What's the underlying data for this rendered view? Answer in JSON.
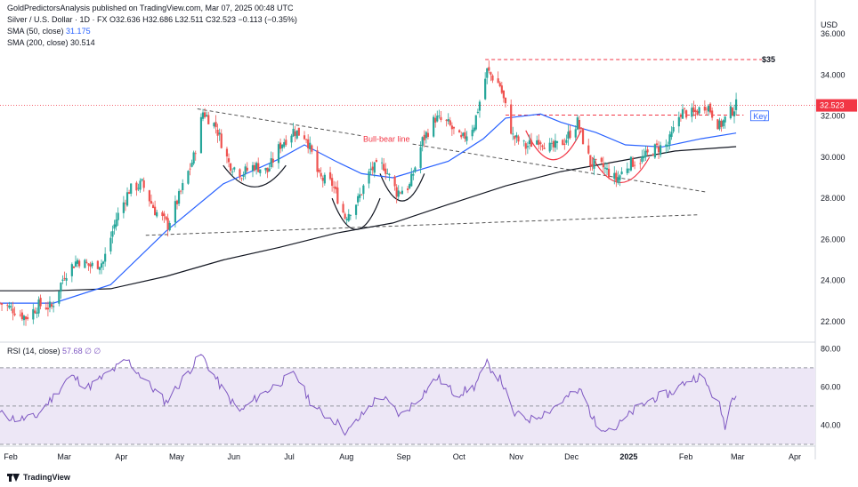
{
  "header": {
    "publisher": "GoldPredictorsAnalysis published on TradingView.com, Mar 07, 2025 00:48 UTC",
    "symbol_line": "Silver / U.S. Dollar · 1D · FX",
    "ohlc": "O32.636 H32.686 L32.511 C32.523 −0.113 (−0.35%)",
    "sma50_label": "SMA (50, close)",
    "sma50_value": "31.175",
    "sma200_label": "SMA (200, close)",
    "sma200_value": "30.514",
    "rsi_label": "RSI (14, close)",
    "rsi_value": "57.68",
    "rsi_extra": "∅ ∅"
  },
  "footer": {
    "brand": "TradingView"
  },
  "colors": {
    "up": "#26a69a",
    "down": "#ef5350",
    "sma50": "#2962ff",
    "sma200": "#131722",
    "rsi": "#7e57c2",
    "rsi_band": "#ede7f6",
    "red_line": "#f23645"
  },
  "annotations": {
    "target_label": "$35",
    "bull_bear_label": "Bull-bear line",
    "key_label": "Key",
    "price_badge": "32.523"
  },
  "chart_data": {
    "type": "candlestick",
    "currency_label": "USD",
    "x_start": "2024-02-01",
    "x_end": "2025-04-15",
    "month_ticks": [
      {
        "label": "Feb",
        "date": "2024-02-01"
      },
      {
        "label": "Mar",
        "date": "2024-03-01"
      },
      {
        "label": "Apr",
        "date": "2024-04-01"
      },
      {
        "label": "May",
        "date": "2024-05-01"
      },
      {
        "label": "Jun",
        "date": "2024-06-01"
      },
      {
        "label": "Jul",
        "date": "2024-07-01"
      },
      {
        "label": "Aug",
        "date": "2024-08-01"
      },
      {
        "label": "Sep",
        "date": "2024-09-01"
      },
      {
        "label": "Oct",
        "date": "2024-10-01"
      },
      {
        "label": "Nov",
        "date": "2024-11-01"
      },
      {
        "label": "Dec",
        "date": "2024-12-01"
      },
      {
        "label": "2025",
        "date": "2025-01-01"
      },
      {
        "label": "Feb",
        "date": "2025-02-01"
      },
      {
        "label": "Mar",
        "date": "2025-03-01"
      },
      {
        "label": "Apr",
        "date": "2025-04-01"
      }
    ],
    "price_axis": {
      "ylim": [
        21.0,
        37.0
      ],
      "ticks": [
        22,
        24,
        26,
        28,
        30,
        32,
        34,
        36
      ],
      "tick_labels": [
        "22.000",
        "24.000",
        "26.000",
        "28.000",
        "30.000",
        "32.000",
        "34.000",
        "36.000"
      ]
    },
    "rsi_axis": {
      "ylim": [
        30,
        82
      ],
      "ticks": [
        40,
        60,
        80
      ],
      "tick_labels": [
        "40.00",
        "60.00",
        "80.00"
      ],
      "upper_band": 70,
      "lower_band": 30,
      "mid": 50
    },
    "close_path": [
      [
        "2024-02-01",
        22.9
      ],
      [
        "2024-02-08",
        22.6
      ],
      [
        "2024-02-15",
        22.2
      ],
      [
        "2024-02-22",
        22.8
      ],
      [
        "2024-02-29",
        22.7
      ],
      [
        "2024-03-07",
        24.3
      ],
      [
        "2024-03-14",
        25.0
      ],
      [
        "2024-03-21",
        24.7
      ],
      [
        "2024-03-28",
        24.9
      ],
      [
        "2024-04-04",
        27.0
      ],
      [
        "2024-04-11",
        28.4
      ],
      [
        "2024-04-18",
        28.7
      ],
      [
        "2024-04-25",
        27.4
      ],
      [
        "2024-05-02",
        26.7
      ],
      [
        "2024-05-09",
        28.3
      ],
      [
        "2024-05-16",
        30.0
      ],
      [
        "2024-05-21",
        32.2
      ],
      [
        "2024-05-28",
        31.5
      ],
      [
        "2024-06-04",
        29.7
      ],
      [
        "2024-06-11",
        29.2
      ],
      [
        "2024-06-18",
        29.6
      ],
      [
        "2024-06-25",
        29.3
      ],
      [
        "2024-07-02",
        30.6
      ],
      [
        "2024-07-09",
        31.3
      ],
      [
        "2024-07-16",
        31.0
      ],
      [
        "2024-07-23",
        29.0
      ],
      [
        "2024-07-30",
        28.7
      ],
      [
        "2024-08-06",
        27.1
      ],
      [
        "2024-08-13",
        27.9
      ],
      [
        "2024-08-20",
        29.4
      ],
      [
        "2024-08-27",
        29.6
      ],
      [
        "2024-09-03",
        28.3
      ],
      [
        "2024-09-10",
        28.6
      ],
      [
        "2024-09-17",
        30.8
      ],
      [
        "2024-09-24",
        31.9
      ],
      [
        "2024-10-01",
        31.6
      ],
      [
        "2024-10-08",
        30.8
      ],
      [
        "2024-10-15",
        31.6
      ],
      [
        "2024-10-22",
        34.2
      ],
      [
        "2024-10-29",
        33.5
      ],
      [
        "2024-11-05",
        31.0
      ],
      [
        "2024-11-12",
        30.5
      ],
      [
        "2024-11-19",
        30.9
      ],
      [
        "2024-11-26",
        30.4
      ],
      [
        "2024-12-03",
        30.8
      ],
      [
        "2024-12-10",
        31.7
      ],
      [
        "2024-12-17",
        29.7
      ],
      [
        "2024-12-24",
        29.5
      ],
      [
        "2024-12-31",
        28.9
      ],
      [
        "2025-01-07",
        29.7
      ],
      [
        "2025-01-14",
        29.9
      ],
      [
        "2025-01-21",
        30.4
      ],
      [
        "2025-01-28",
        30.6
      ],
      [
        "2025-02-04",
        32.2
      ],
      [
        "2025-02-11",
        32.1
      ],
      [
        "2025-02-18",
        32.6
      ],
      [
        "2025-02-25",
        31.5
      ],
      [
        "2025-03-03",
        32.2
      ],
      [
        "2025-03-06",
        32.52
      ]
    ],
    "sma50": [
      [
        "2024-02-01",
        22.9
      ],
      [
        "2024-03-01",
        22.9
      ],
      [
        "2024-04-01",
        23.8
      ],
      [
        "2024-05-01",
        26.4
      ],
      [
        "2024-06-01",
        28.7
      ],
      [
        "2024-07-01",
        29.9
      ],
      [
        "2024-07-15",
        30.6
      ],
      [
        "2024-08-01",
        29.8
      ],
      [
        "2024-08-15",
        29.2
      ],
      [
        "2024-09-01",
        29.0
      ],
      [
        "2024-10-01",
        29.8
      ],
      [
        "2024-10-20",
        30.9
      ],
      [
        "2024-11-01",
        31.9
      ],
      [
        "2024-11-20",
        32.1
      ],
      [
        "2024-12-01",
        31.7
      ],
      [
        "2024-12-20",
        31.2
      ],
      [
        "2025-01-05",
        30.6
      ],
      [
        "2025-01-25",
        30.5
      ],
      [
        "2025-02-15",
        30.9
      ],
      [
        "2025-03-06",
        31.175
      ]
    ],
    "sma200": [
      [
        "2024-02-01",
        23.5
      ],
      [
        "2024-03-01",
        23.5
      ],
      [
        "2024-04-01",
        23.6
      ],
      [
        "2024-05-01",
        24.2
      ],
      [
        "2024-06-01",
        25.0
      ],
      [
        "2024-07-01",
        25.6
      ],
      [
        "2024-08-01",
        26.3
      ],
      [
        "2024-09-01",
        26.8
      ],
      [
        "2024-10-01",
        27.7
      ],
      [
        "2024-11-01",
        28.6
      ],
      [
        "2024-12-01",
        29.3
      ],
      [
        "2025-01-01",
        29.8
      ],
      [
        "2025-02-01",
        30.3
      ],
      [
        "2025-03-06",
        30.514
      ]
    ],
    "rsi": [
      [
        "2024-02-01",
        46
      ],
      [
        "2024-02-10",
        43
      ],
      [
        "2024-02-20",
        44
      ],
      [
        "2024-03-01",
        55
      ],
      [
        "2024-03-10",
        66
      ],
      [
        "2024-03-20",
        60
      ],
      [
        "2024-04-01",
        68
      ],
      [
        "2024-04-10",
        74
      ],
      [
        "2024-04-20",
        63
      ],
      [
        "2024-05-01",
        52
      ],
      [
        "2024-05-10",
        64
      ],
      [
        "2024-05-20",
        77
      ],
      [
        "2024-06-01",
        58
      ],
      [
        "2024-06-10",
        47
      ],
      [
        "2024-06-20",
        55
      ],
      [
        "2024-07-01",
        62
      ],
      [
        "2024-07-10",
        67
      ],
      [
        "2024-07-20",
        49
      ],
      [
        "2024-08-01",
        42
      ],
      [
        "2024-08-07",
        36
      ],
      [
        "2024-08-15",
        45
      ],
      [
        "2024-08-25",
        56
      ],
      [
        "2024-09-05",
        45
      ],
      [
        "2024-09-15",
        54
      ],
      [
        "2024-09-25",
        65
      ],
      [
        "2024-10-05",
        56
      ],
      [
        "2024-10-15",
        60
      ],
      [
        "2024-10-22",
        72
      ],
      [
        "2024-10-30",
        63
      ],
      [
        "2024-11-05",
        46
      ],
      [
        "2024-11-15",
        43
      ],
      [
        "2024-11-25",
        48
      ],
      [
        "2024-12-05",
        55
      ],
      [
        "2024-12-12",
        58
      ],
      [
        "2024-12-20",
        40
      ],
      [
        "2024-12-30",
        38
      ],
      [
        "2025-01-10",
        48
      ],
      [
        "2025-01-20",
        54
      ],
      [
        "2025-01-30",
        57
      ],
      [
        "2025-02-07",
        63
      ],
      [
        "2025-02-15",
        66
      ],
      [
        "2025-02-25",
        50
      ],
      [
        "2025-02-28",
        40
      ],
      [
        "2025-03-03",
        52
      ],
      [
        "2025-03-06",
        57.68
      ]
    ],
    "lines": {
      "target_35": {
        "price": 34.75,
        "from": "2024-10-21",
        "label": "$35"
      },
      "key_32": {
        "price": 32.05,
        "from": "2024-11-01",
        "to": "2025-03-10"
      },
      "last_price": 32.52,
      "bull_bear": {
        "from": [
          "2024-05-18",
          32.35
        ],
        "to": [
          "2025-02-18",
          28.3
        ]
      },
      "lower_trend": {
        "from": [
          "2024-04-20",
          26.2
        ],
        "to": [
          "2025-02-14",
          27.2
        ]
      }
    },
    "cups": [
      {
        "from": "2024-06-01",
        "to": "2024-07-05",
        "bottom": 28.5,
        "top": 29.6
      },
      {
        "from": "2024-07-30",
        "to": "2024-08-25",
        "bottom": 26.4,
        "top": 28.0
      },
      {
        "from": "2024-08-25",
        "to": "2024-09-18",
        "bottom": 27.8,
        "top": 29.2
      },
      {
        "from": "2024-11-12",
        "to": "2024-12-12",
        "bottom": 29.8,
        "top": 31.3
      },
      {
        "from": "2024-12-18",
        "to": "2025-01-18",
        "bottom": 28.7,
        "top": 30.0
      }
    ]
  }
}
